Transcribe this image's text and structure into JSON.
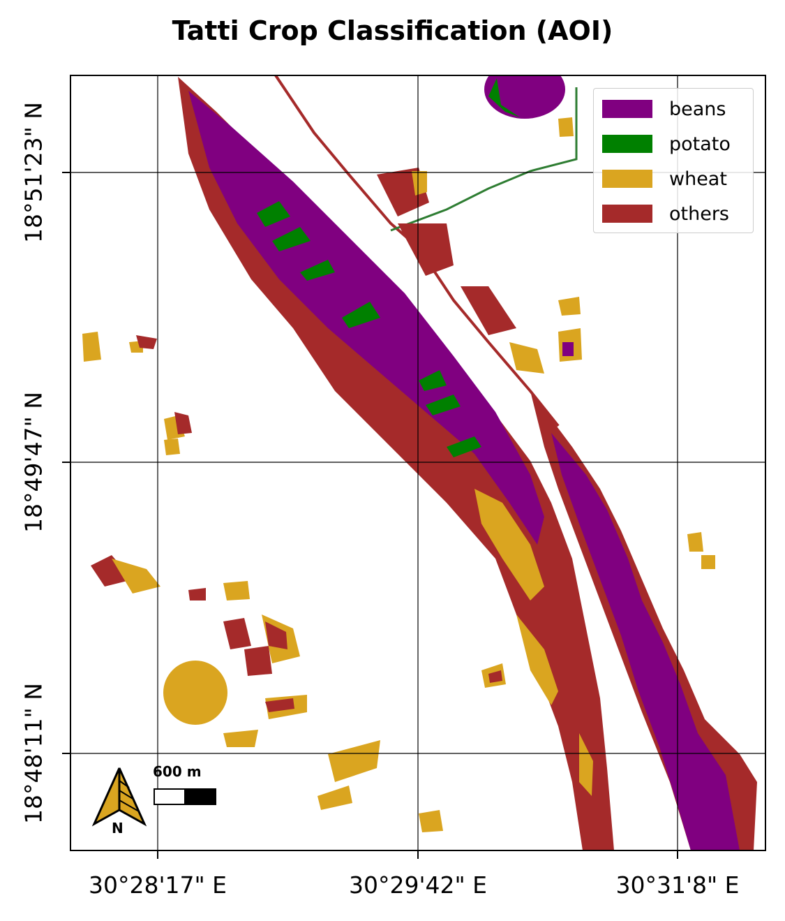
{
  "map": {
    "title": "Tatti Crop Classification (AOI)",
    "x_ticks": [
      "30°28'17\" E",
      "30°29'42\" E",
      "30°31'8\" E"
    ],
    "y_ticks": [
      "18°51'23\" N",
      "18°49'47\" N",
      "18°48'11\" N"
    ],
    "legend": [
      {
        "label": "beans",
        "color": "#800080"
      },
      {
        "label": "potato",
        "color": "#008000"
      },
      {
        "label": "wheat",
        "color": "#DAA520"
      },
      {
        "label": "others",
        "color": "#A52A2A"
      }
    ],
    "scale_bar": {
      "label": "600 m"
    },
    "north_arrow": {
      "label": "N",
      "icon": "north-arrow-icon"
    },
    "colors": {
      "beans": "#800080",
      "potato": "#008000",
      "wheat": "#DAA520",
      "others": "#A52A2A"
    }
  }
}
